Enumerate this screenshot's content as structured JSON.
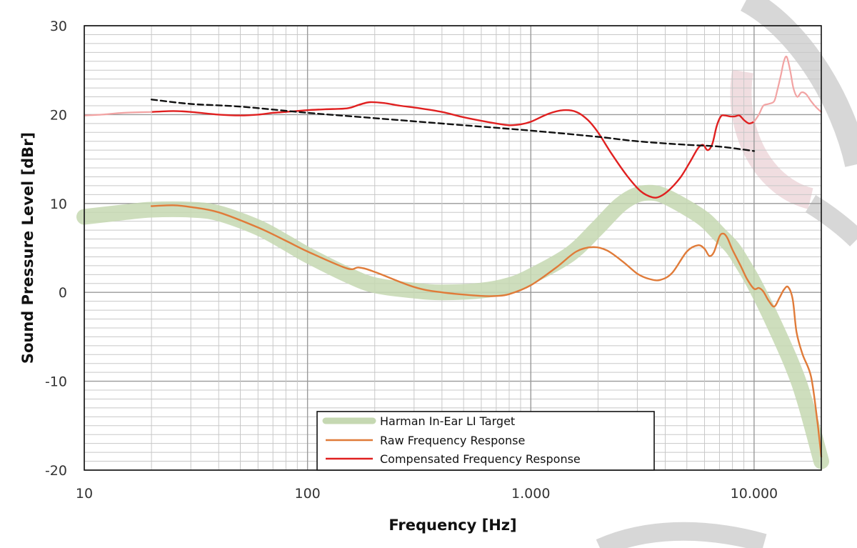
{
  "chart_data": {
    "type": "line",
    "xlabel": "Frequency [Hz]",
    "ylabel": "Sound Pressure Level [dBr]",
    "x_scale": "log",
    "xlim": [
      10,
      20000
    ],
    "ylim": [
      -20,
      30
    ],
    "x_ticks": [
      {
        "value": 10,
        "label": "10"
      },
      {
        "value": 100,
        "label": "100"
      },
      {
        "value": 1000,
        "label": "1.000"
      },
      {
        "value": 10000,
        "label": "10.000"
      }
    ],
    "y_ticks": [
      {
        "value": 30,
        "label": "30"
      },
      {
        "value": 20,
        "label": "20"
      },
      {
        "value": 10,
        "label": "10"
      },
      {
        "value": 0,
        "label": "0"
      },
      {
        "value": -10,
        "label": "-10"
      },
      {
        "value": -20,
        "label": "-20"
      }
    ],
    "grid": true,
    "legend_position": "bottom-center",
    "series": [
      {
        "name": "Harman In-Ear LI Target",
        "color": "#c5d8b2",
        "style": "thick-band",
        "x": [
          10,
          15,
          20,
          30,
          40,
          60,
          80,
          100,
          150,
          200,
          300,
          400,
          600,
          800,
          1000,
          1500,
          2000,
          2500,
          3000,
          3500,
          4000,
          5000,
          6000,
          7000,
          8000,
          9000,
          10000,
          12000,
          15000,
          17000,
          20000
        ],
        "y": [
          8.5,
          9.0,
          9.3,
          9.3,
          8.9,
          7.3,
          5.6,
          4.2,
          2.0,
          0.8,
          0.2,
          0.0,
          0.2,
          0.8,
          1.8,
          4.3,
          7.3,
          9.8,
          11.0,
          11.2,
          10.8,
          9.5,
          8.2,
          6.5,
          5.0,
          3.0,
          1.0,
          -3.0,
          -8.5,
          -12.5,
          -19.0
        ]
      },
      {
        "name": "Raw Frequency Response",
        "color": "#e07b39",
        "style": "line",
        "x": [
          20,
          25,
          30,
          40,
          60,
          80,
          100,
          150,
          170,
          200,
          300,
          400,
          600,
          700,
          800,
          1000,
          1300,
          1600,
          1900,
          2200,
          2600,
          3000,
          3400,
          3800,
          4300,
          5000,
          5600,
          6000,
          6300,
          6600,
          7000,
          7300,
          7600,
          8000,
          8700,
          9300,
          10000,
          10500,
          11000,
          11600,
          12300,
          13000,
          13600,
          14200,
          14900,
          15500,
          16500,
          18000,
          19200,
          20000
        ],
        "y": [
          9.7,
          9.8,
          9.6,
          9.0,
          7.3,
          5.8,
          4.6,
          2.7,
          2.8,
          2.3,
          0.6,
          0.0,
          -0.4,
          -0.4,
          -0.2,
          0.8,
          2.8,
          4.6,
          5.1,
          4.7,
          3.4,
          2.1,
          1.5,
          1.4,
          2.2,
          4.6,
          5.3,
          4.9,
          4.1,
          4.5,
          6.3,
          6.6,
          6.1,
          4.8,
          3.0,
          1.5,
          0.4,
          0.5,
          0.1,
          -0.9,
          -1.6,
          -0.6,
          0.3,
          0.6,
          -0.8,
          -4.5,
          -7.0,
          -9.5,
          -14.5,
          -18.5
        ]
      },
      {
        "name": "Compensated Frequency Response",
        "color": "#e02020",
        "style": "line",
        "x": [
          20,
          25,
          30,
          40,
          50,
          60,
          70,
          80,
          100,
          120,
          150,
          170,
          190,
          220,
          260,
          320,
          400,
          500,
          600,
          700,
          800,
          900,
          1000,
          1200,
          1400,
          1600,
          1800,
          2000,
          2300,
          2700,
          3100,
          3500,
          3800,
          4200,
          4700,
          5200,
          5600,
          5900,
          6200,
          6500,
          6800,
          7100,
          7400,
          7800,
          8200,
          8600,
          9000,
          9500,
          10000
        ],
        "y": [
          20.3,
          20.4,
          20.3,
          20.0,
          19.9,
          20.0,
          20.2,
          20.3,
          20.5,
          20.6,
          20.7,
          21.1,
          21.4,
          21.3,
          21.0,
          20.7,
          20.3,
          19.7,
          19.3,
          19.0,
          18.8,
          18.9,
          19.2,
          20.1,
          20.5,
          20.3,
          19.4,
          18.0,
          15.6,
          13.1,
          11.4,
          10.7,
          10.8,
          11.6,
          13.0,
          14.8,
          16.2,
          16.6,
          16.0,
          16.7,
          18.7,
          19.8,
          19.9,
          19.8,
          19.8,
          19.9,
          19.4,
          19.0,
          19.2
        ]
      },
      {
        "name": "",
        "color": "#f2a3a3",
        "style": "faded-line",
        "x": [
          10,
          12,
          15,
          20
        ],
        "y": [
          19.9,
          20.0,
          20.2,
          20.3
        ]
      },
      {
        "name": "",
        "color": "#f2a3a3",
        "style": "faded-line",
        "x": [
          10000,
          10500,
          11000,
          11600,
          12300,
          12700,
          13200,
          13600,
          14000,
          14500,
          15000,
          15600,
          16300,
          17100,
          18000,
          19000,
          20000
        ],
        "y": [
          19.2,
          20.0,
          21.0,
          21.2,
          21.5,
          22.7,
          24.5,
          26.0,
          26.5,
          25.0,
          23.0,
          22.0,
          22.5,
          22.3,
          21.5,
          20.8,
          20.3
        ]
      },
      {
        "name": "",
        "color": "#111111",
        "style": "dashed",
        "x": [
          20,
          30,
          50,
          100,
          200,
          500,
          1000,
          2000,
          3000,
          5000,
          7000,
          10000
        ],
        "y": [
          21.7,
          21.2,
          20.9,
          20.2,
          19.6,
          18.8,
          18.2,
          17.5,
          17.0,
          16.6,
          16.4,
          15.9
        ]
      }
    ]
  }
}
